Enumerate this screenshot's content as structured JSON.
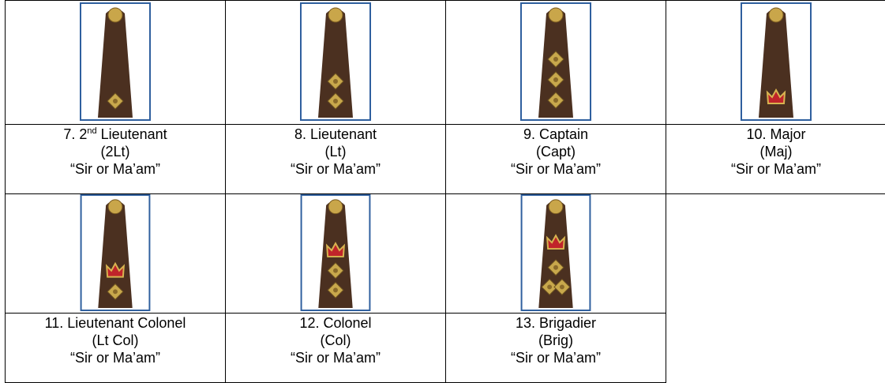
{
  "ranks": [
    {
      "title_parts": [
        "7. 2",
        "nd",
        " Lieutenant"
      ],
      "abbreviation": "(2Lt)",
      "address": "“Sir or Ma’am”"
    },
    {
      "title": "8. Lieutenant",
      "abbreviation": "(Lt)",
      "address": "“Sir or Ma’am”"
    },
    {
      "title": "9. Captain",
      "abbreviation": "(Capt)",
      "address": "“Sir or Ma’am”"
    },
    {
      "title": "10. Major",
      "abbreviation": "(Maj)",
      "address": "“Sir or Ma’am”"
    },
    {
      "title": "11. Lieutenant Colonel",
      "abbreviation": "(Lt Col)",
      "address": "“Sir or Ma’am”"
    },
    {
      "title": "12. Colonel",
      "abbreviation": "(Col)",
      "address": "“Sir or Ma’am”"
    },
    {
      "title": "13. Brigadier",
      "abbreviation": "(Brig)",
      "address": "“Sir or Ma’am”"
    }
  ]
}
